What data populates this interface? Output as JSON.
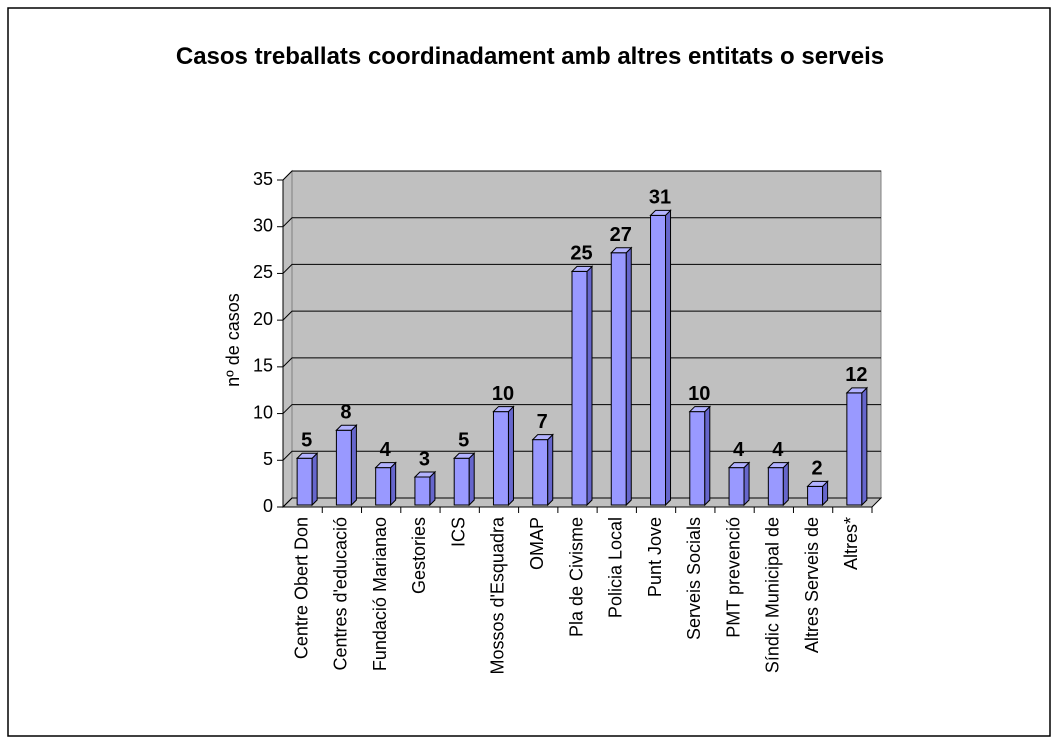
{
  "chart_data": {
    "type": "bar3d",
    "title": "Casos  treballats coordinadament amb altres entitats o serveis",
    "y_label": "nº de casos",
    "categories": [
      "Centre Obert Don",
      "Centres d'educació",
      "Fundació Marianao",
      "Gestories",
      "ICS",
      "Mossos d'Esquadra",
      "OMAP",
      "Pla de Civisme",
      "Policia Local",
      "Punt Jove",
      "Serveis Socials",
      "PMT prevenció",
      "Síndic Municipal de",
      "Altres Serveis de",
      "Altres*"
    ],
    "values": [
      5,
      8,
      4,
      3,
      5,
      10,
      7,
      25,
      27,
      31,
      10,
      4,
      4,
      2,
      12
    ],
    "color": "#9999ff",
    "ylim": [
      0,
      35
    ],
    "yticks": [
      0,
      5,
      10,
      15,
      20,
      25,
      30,
      35
    ],
    "grid": true
  }
}
